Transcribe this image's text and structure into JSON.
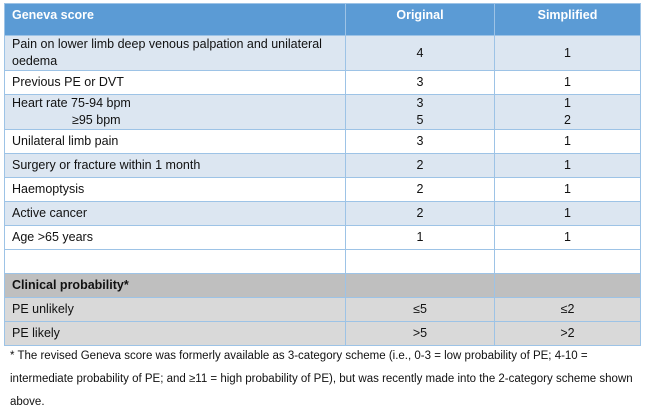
{
  "header": {
    "criterion": "Geneva score",
    "original": "Original",
    "simplified": "Simplified"
  },
  "rows": [
    {
      "label": "Pain on lower limb deep venous palpation and unilateral oedema",
      "original": "4",
      "simplified": "1"
    },
    {
      "label": "Previous PE or DVT",
      "original": "3",
      "simplified": "1"
    },
    {
      "label": "Heart rate 75-94 bpm",
      "sublabel": "≥95 bpm",
      "original": "3",
      "original2": "5",
      "simplified": "1",
      "simplified2": "2"
    },
    {
      "label": "Unilateral limb pain",
      "original": "3",
      "simplified": "1"
    },
    {
      "label": "Surgery or fracture within 1 month",
      "original": "2",
      "simplified": "1"
    },
    {
      "label": "Haemoptysis",
      "original": "2",
      "simplified": "1"
    },
    {
      "label": "Active cancer",
      "original": "2",
      "simplified": "1"
    },
    {
      "label": "Age >65 years",
      "original": "1",
      "simplified": "1"
    }
  ],
  "probability": {
    "title": "Clinical probability*",
    "rows": [
      {
        "label": "PE unlikely",
        "original": "≤5",
        "simplified": "≤2"
      },
      {
        "label": "PE likely",
        "original": ">5",
        "simplified": ">2"
      }
    ]
  },
  "footnote": "* The revised Geneva score was formerly available as 3-category scheme (i.e., 0-3 = low probability of PE; 4-10 = intermediate probability of PE; and ≥11 = high probability of PE), but was recently made into the 2-category scheme shown above."
}
